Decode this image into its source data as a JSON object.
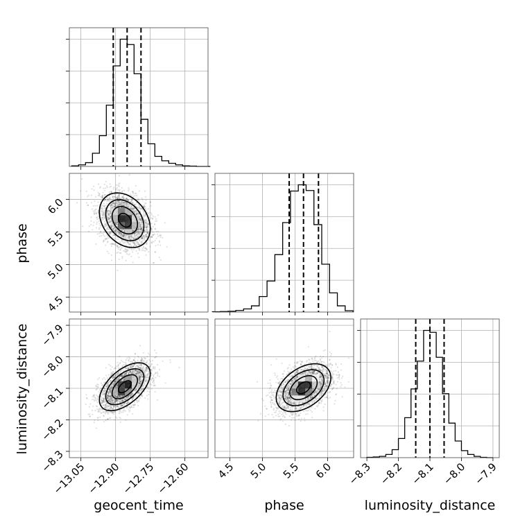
{
  "chart_data": {
    "type": "corner",
    "parameters": [
      "geocent_time",
      "phase",
      "luminosity_distance"
    ],
    "axis_labels": [
      "geocent_time",
      "phase",
      "luminosity_distance"
    ],
    "ranges": {
      "geocent_time": [
        -13.1,
        -12.5
      ],
      "phase": [
        4.27,
        6.4
      ],
      "luminosity_distance": [
        -8.32,
        -7.88
      ]
    },
    "ticks": {
      "geocent_time": {
        "values": [
          -13.05,
          -12.9,
          -12.75,
          -12.6
        ],
        "labels": [
          "−13.05",
          "−12.90",
          "−12.75",
          "−12.60"
        ]
      },
      "phase": {
        "values": [
          4.5,
          5.0,
          5.5,
          6.0
        ],
        "labels": [
          "4.5",
          "5.0",
          "5.5",
          "6.0"
        ]
      },
      "luminosity_distance": {
        "values": [
          -8.3,
          -8.2,
          -8.1,
          -8.0,
          -7.9
        ],
        "labels": [
          "−8.3",
          "−8.2",
          "−8.1",
          "−8.0",
          "−7.9"
        ]
      }
    },
    "grid": true,
    "quantile_lines": {
      "geocent_time": [
        -12.91,
        -12.85,
        -12.79
      ],
      "phase": [
        5.41,
        5.63,
        5.86
      ],
      "luminosity_distance": [
        -8.145,
        -8.1,
        -8.055
      ]
    },
    "histograms": {
      "geocent_time": {
        "edges": [
          -13.09,
          -13.06,
          -13.03,
          -13.0,
          -12.97,
          -12.94,
          -12.91,
          -12.88,
          -12.85,
          -12.82,
          -12.79,
          -12.76,
          -12.73,
          -12.7,
          -12.67,
          -12.64,
          -12.61,
          -12.58,
          -12.55,
          -12.52,
          -12.49
        ],
        "counts": [
          2,
          5,
          12,
          42,
          98,
          195,
          320,
          405,
          388,
          295,
          150,
          72,
          32,
          18,
          10,
          5,
          2,
          1,
          0,
          0
        ]
      },
      "phase": {
        "edges": [
          4.23,
          4.35,
          4.47,
          4.59,
          4.71,
          4.83,
          4.95,
          5.07,
          5.19,
          5.31,
          5.43,
          5.55,
          5.67,
          5.79,
          5.91,
          6.03,
          6.15,
          6.27,
          6.39
        ],
        "counts": [
          1,
          2,
          3,
          6,
          12,
          24,
          60,
          120,
          222,
          346,
          468,
          492,
          470,
          338,
          185,
          74,
          24,
          5
        ]
      },
      "luminosity_distance": {
        "edges": [
          -8.3,
          -8.28,
          -8.26,
          -8.24,
          -8.22,
          -8.2,
          -8.18,
          -8.16,
          -8.14,
          -8.12,
          -8.1,
          -8.08,
          -8.06,
          -8.04,
          -8.02,
          -8.0,
          -7.98,
          -7.96,
          -7.94,
          -7.92,
          -7.9
        ],
        "counts": [
          1,
          2,
          4,
          10,
          25,
          60,
          125,
          215,
          302,
          398,
          392,
          314,
          200,
          108,
          52,
          22,
          10,
          4,
          1,
          0
        ]
      }
    },
    "joint": {
      "phase_vs_geocent_time": {
        "mean": [
          -12.86,
          5.68
        ],
        "sigma": [
          0.055,
          0.21
        ],
        "rho": -0.3
      },
      "luminosity_distance_vs_geocent_time": {
        "mean": [
          -12.86,
          -8.095
        ],
        "sigma": [
          0.055,
          0.038
        ],
        "rho": 0.55
      },
      "luminosity_distance_vs_phase": {
        "mean": [
          5.63,
          -8.098
        ],
        "sigma": [
          0.21,
          0.038
        ],
        "rho": 0.42
      }
    }
  }
}
